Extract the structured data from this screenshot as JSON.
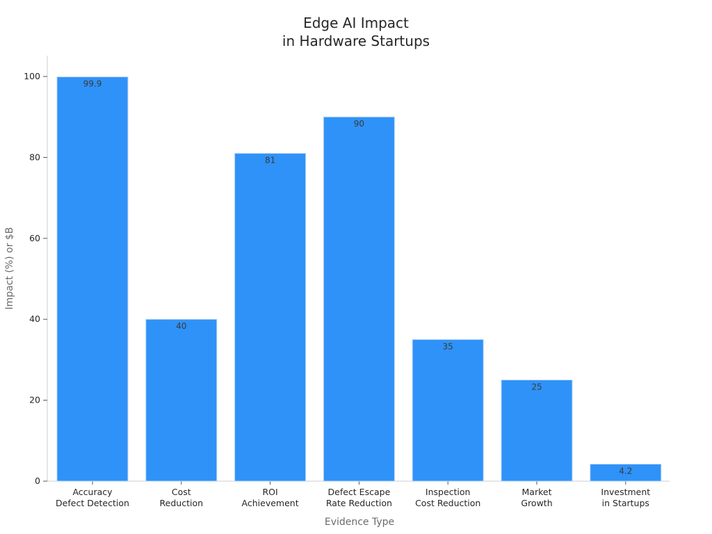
{
  "chart_data": {
    "type": "bar",
    "title_lines": [
      "Edge AI Impact",
      "in Hardware Startups"
    ],
    "xlabel": "Evidence Type",
    "ylabel": "Impact (%) or $B",
    "categories": [
      [
        "Accuracy",
        "Defect Detection"
      ],
      [
        "Cost",
        "Reduction"
      ],
      [
        "ROI",
        "Achievement"
      ],
      [
        "Defect Escape",
        "Rate Reduction"
      ],
      [
        "Inspection",
        "Cost Reduction"
      ],
      [
        "Market",
        "Growth"
      ],
      [
        "Investment",
        "in Startups"
      ]
    ],
    "values": [
      99.9,
      40,
      81,
      90,
      35,
      25,
      4.2
    ],
    "data_labels": [
      "99.9",
      "40",
      "81",
      "90",
      "35",
      "25",
      "4.2"
    ],
    "ylim": [
      0,
      105
    ],
    "yticks": [
      0,
      20,
      40,
      60,
      80,
      100
    ],
    "grid": false,
    "legend": "none",
    "bar_color": "#2f92f8"
  }
}
